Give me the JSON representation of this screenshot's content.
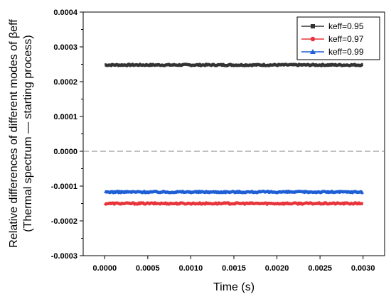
{
  "chart_data": {
    "type": "line",
    "title": "",
    "xlabel": "Time (s)",
    "ylabel_lines": [
      "Relative differences of different modes of βeff",
      "(Thermal spectrum — starting process)"
    ],
    "xlim": [
      -0.00025,
      0.00325
    ],
    "ylim": [
      -0.0003,
      0.0004
    ],
    "x_ticks": [
      "0.0000",
      "0.0005",
      "0.0010",
      "0.0015",
      "0.0020",
      "0.0025",
      "0.0030"
    ],
    "x_tick_values": [
      0,
      0.0005,
      0.001,
      0.0015,
      0.002,
      0.0025,
      0.003
    ],
    "y_ticks": [
      "-0.0003",
      "-0.0002",
      "-0.0001",
      "0.0000",
      "0.0001",
      "0.0002",
      "0.0003",
      "0.0004"
    ],
    "y_tick_values": [
      -0.0003,
      -0.0002,
      -0.0001,
      0,
      0.0001,
      0.0002,
      0.0003,
      0.0004
    ],
    "reference_line": {
      "y": 0,
      "style": "dashed",
      "color": "#808080"
    },
    "legend_position": "top-right",
    "grid": false,
    "series": [
      {
        "name": "keff=0.95",
        "color": "#333333",
        "marker": "square",
        "x_start": 0,
        "x_end": 0.003,
        "y": 0.000248,
        "noise": 2e-06
      },
      {
        "name": "keff=0.97",
        "color": "#e8343b",
        "marker": "circle",
        "x_start": 0,
        "x_end": 0.003,
        "y": -0.00015,
        "noise": 2e-06
      },
      {
        "name": "keff=0.99",
        "color": "#1f5fd6",
        "marker": "triangle",
        "x_start": 0,
        "x_end": 0.003,
        "y": -0.000117,
        "noise": 2e-06
      }
    ]
  }
}
